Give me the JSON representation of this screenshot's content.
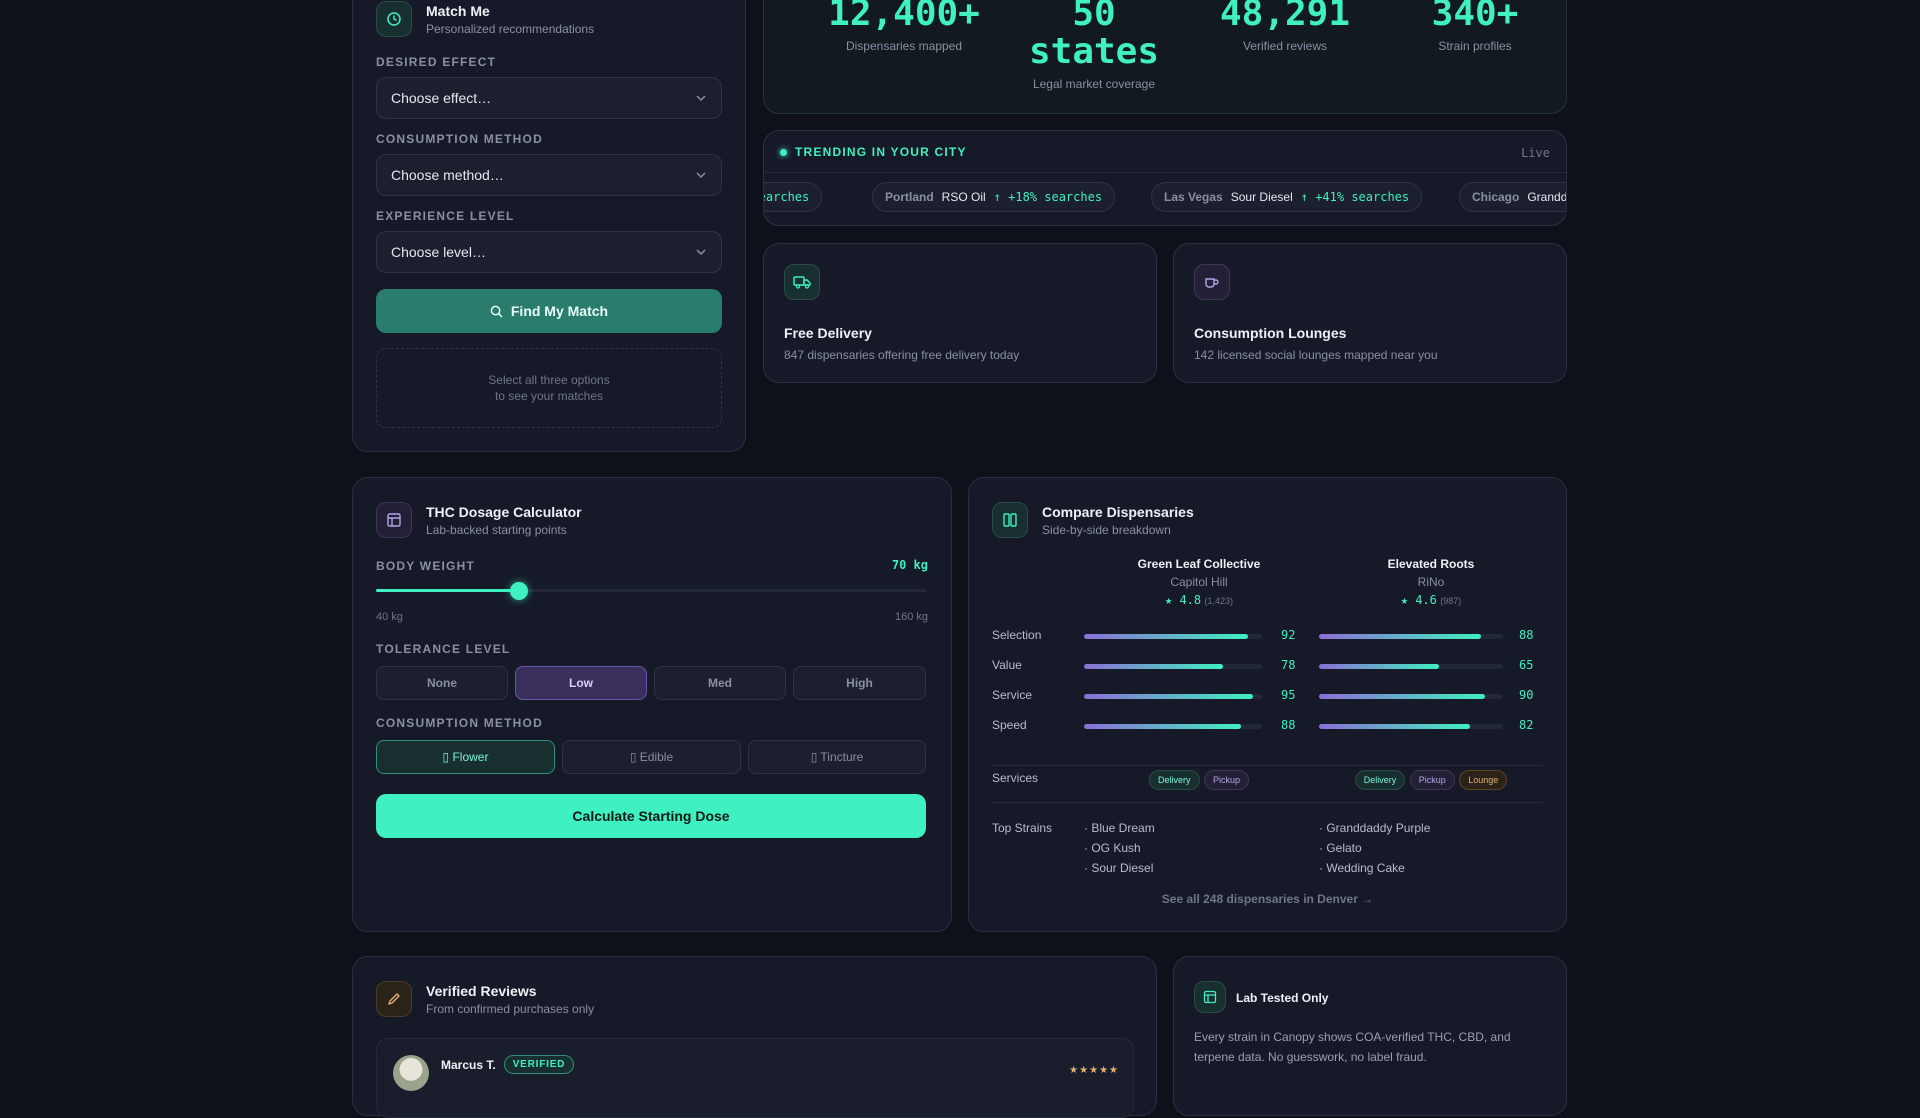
{
  "match": {
    "title": "Match Me",
    "subtitle": "Personalized recommendations",
    "effect_label": "DESIRED EFFECT",
    "effect_value": "Choose effect…",
    "method_label": "CONSUMPTION METHOD",
    "method_value": "Choose method…",
    "level_label": "EXPERIENCE LEVEL",
    "level_value": "Choose level…",
    "button": "Find My Match",
    "hint_line1": "Select all three options",
    "hint_line2": "to see your matches"
  },
  "stats": [
    {
      "value": "12,400+",
      "label": "Dispensaries mapped"
    },
    {
      "value": "50",
      "value2": "states",
      "label": "Legal market coverage"
    },
    {
      "value": "48,291",
      "label": "Verified reviews"
    },
    {
      "value": "340+",
      "label": "Strain profiles"
    }
  ],
  "trending": {
    "title": "TRENDING IN YOUR CITY",
    "live": "Live",
    "items": [
      {
        "tail": "% searches"
      },
      {
        "city": "Portland",
        "strain": "RSO Oil",
        "delta": "↑ +18% searches"
      },
      {
        "city": "Las Vegas",
        "strain": "Sour Diesel",
        "delta": "↑ +41% searches"
      },
      {
        "city": "Chicago",
        "strain": "Grandd"
      }
    ]
  },
  "features": [
    {
      "title": "Free Delivery",
      "text": "847 dispensaries offering free delivery today",
      "icon": "truck-icon"
    },
    {
      "title": "Consumption Lounges",
      "text": "142 licensed social lounges mapped near you",
      "icon": "cup-icon"
    }
  ],
  "dosage": {
    "title": "THC Dosage Calculator",
    "subtitle": "Lab-backed starting points",
    "weight_label": "BODY WEIGHT",
    "weight_value": "70 kg",
    "slider_fraction": 0.26,
    "min_label": "40 kg",
    "max_label": "160 kg",
    "tolerance_label": "TOLERANCE LEVEL",
    "tolerance_options": [
      "None",
      "Low",
      "Med",
      "High"
    ],
    "tolerance_selected": "Low",
    "method_label": "CONSUMPTION METHOD",
    "method_options": [
      "▯ Flower",
      "▯ Edible",
      "▯ Tincture"
    ],
    "method_selected": "▯ Flower",
    "button": "Calculate Starting Dose"
  },
  "compare": {
    "title": "Compare Dispensaries",
    "subtitle": "Side-by-side breakdown",
    "dispensaries": [
      {
        "name": "Green Leaf Collective",
        "area": "Capitol Hill",
        "rating": "★ 4.8",
        "count": "(1,423)",
        "scores": [
          92,
          78,
          95,
          88
        ],
        "services": [
          "Delivery",
          "Pickup"
        ],
        "strains": [
          "· Blue Dream",
          "· OG Kush",
          "· Sour Diesel"
        ]
      },
      {
        "name": "Elevated Roots",
        "area": "RiNo",
        "rating": "★ 4.6",
        "count": "(987)",
        "scores": [
          88,
          65,
          90,
          82
        ],
        "services": [
          "Delivery",
          "Pickup",
          "Lounge"
        ],
        "strains": [
          "· Granddaddy Purple",
          "· Gelato",
          "· Wedding Cake"
        ]
      }
    ],
    "metrics": [
      "Selection",
      "Value",
      "Service",
      "Speed"
    ],
    "services_label": "Services",
    "strains_label": "Top Strains",
    "see_all": "See all 248 dispensaries in Denver →"
  },
  "reviews": {
    "title": "Verified Reviews",
    "subtitle": "From confirmed purchases only",
    "first_name": "Marcus T.",
    "badge": "VERIFIED",
    "stars": "★★★★★"
  },
  "lab": {
    "title": "Lab Tested Only",
    "text": "Every strain in Canopy shows COA-verified THC, CBD, and terpene data. No guesswork, no label fraud."
  },
  "colors": {
    "accent": "#3ff0c0",
    "purple": "#8b6fd6",
    "bg": "#0f111a",
    "card": "#161a28"
  }
}
